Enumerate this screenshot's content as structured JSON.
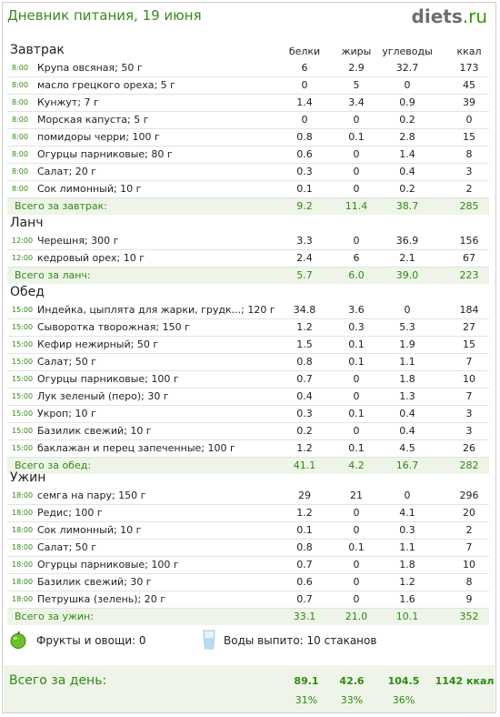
{
  "header": {
    "title": "Дневник питания, 19 июня",
    "logo_main": "diets",
    "logo_tld": ".ru"
  },
  "columns": [
    "белки",
    "жиры",
    "углеводы",
    "ккал"
  ],
  "meals": [
    {
      "name": "Завтрак",
      "items": [
        {
          "time": "8:00",
          "food": "Крупа овсяная; 50 г",
          "p": "6",
          "f": "2.9",
          "c": "32.7",
          "k": "173"
        },
        {
          "time": "8:00",
          "food": "масло грецкого ореха; 5 г",
          "p": "0",
          "f": "5",
          "c": "0",
          "k": "45"
        },
        {
          "time": "8:00",
          "food": "Кунжут; 7 г",
          "p": "1.4",
          "f": "3.4",
          "c": "0.9",
          "k": "39"
        },
        {
          "time": "8:00",
          "food": "Морская капуста; 5 г",
          "p": "0",
          "f": "0",
          "c": "0.2",
          "k": "0"
        },
        {
          "time": "8:00",
          "food": "помидоры черри; 100 г",
          "p": "0.8",
          "f": "0.1",
          "c": "2.8",
          "k": "15"
        },
        {
          "time": "8:00",
          "food": "Огурцы парниковые; 80 г",
          "p": "0.6",
          "f": "0",
          "c": "1.4",
          "k": "8"
        },
        {
          "time": "8:00",
          "food": "Салат; 20 г",
          "p": "0.3",
          "f": "0",
          "c": "0.4",
          "k": "3"
        },
        {
          "time": "8:00",
          "food": "Сок лимонный; 10 г",
          "p": "0.1",
          "f": "0",
          "c": "0.2",
          "k": "2"
        }
      ],
      "total": {
        "label": "Всего за завтрак:",
        "p": "9.2",
        "f": "11.4",
        "c": "38.7",
        "k": "285"
      }
    },
    {
      "name": "Ланч",
      "items": [
        {
          "time": "12:00",
          "food": "Черешня; 300 г",
          "p": "3.3",
          "f": "0",
          "c": "36.9",
          "k": "156"
        },
        {
          "time": "12:00",
          "food": "кедровый орех; 10 г",
          "p": "2.4",
          "f": "6",
          "c": "2.1",
          "k": "67"
        }
      ],
      "total": {
        "label": "Всего за ланч:",
        "p": "5.7",
        "f": "6.0",
        "c": "39.0",
        "k": "223"
      }
    },
    {
      "name": "Обед",
      "items": [
        {
          "time": "15:00",
          "food": "Индейка, цыплята для жарки, грудк...; 120 г",
          "p": "34.8",
          "f": "3.6",
          "c": "0",
          "k": "184"
        },
        {
          "time": "15:00",
          "food": "Сыворотка творожная; 150 г",
          "p": "1.2",
          "f": "0.3",
          "c": "5.3",
          "k": "27"
        },
        {
          "time": "15:00",
          "food": "Кефир нежирный; 50 г",
          "p": "1.5",
          "f": "0.1",
          "c": "1.9",
          "k": "15"
        },
        {
          "time": "15:00",
          "food": "Салат; 50 г",
          "p": "0.8",
          "f": "0.1",
          "c": "1.1",
          "k": "7"
        },
        {
          "time": "15:00",
          "food": "Огурцы парниковые; 100 г",
          "p": "0.7",
          "f": "0",
          "c": "1.8",
          "k": "10"
        },
        {
          "time": "15:00",
          "food": "Лук зеленый (перо); 30 г",
          "p": "0.4",
          "f": "0",
          "c": "1.3",
          "k": "7"
        },
        {
          "time": "15:00",
          "food": "Укроп; 10 г",
          "p": "0.3",
          "f": "0.1",
          "c": "0.4",
          "k": "3"
        },
        {
          "time": "15:00",
          "food": "Базилик свежий; 10 г",
          "p": "0.2",
          "f": "0",
          "c": "0.4",
          "k": "3"
        },
        {
          "time": "15:00",
          "food": "баклажан и перец запеченные; 100 г",
          "p": "1.2",
          "f": "0.1",
          "c": "4.5",
          "k": "26"
        }
      ],
      "total": {
        "label": "Всего за обед:",
        "p": "41.1",
        "f": "4.2",
        "c": "16.7",
        "k": "282"
      }
    },
    {
      "name": "Ужин",
      "items": [
        {
          "time": "18:00",
          "food": "семга на пару; 150 г",
          "p": "29",
          "f": "21",
          "c": "0",
          "k": "296"
        },
        {
          "time": "18:00",
          "food": "Редис; 100 г",
          "p": "1.2",
          "f": "0",
          "c": "4.1",
          "k": "20"
        },
        {
          "time": "18:00",
          "food": "Сок лимонный; 10 г",
          "p": "0.1",
          "f": "0",
          "c": "0.3",
          "k": "2"
        },
        {
          "time": "18:00",
          "food": "Салат; 50 г",
          "p": "0.8",
          "f": "0.1",
          "c": "1.1",
          "k": "7"
        },
        {
          "time": "18:00",
          "food": "Огурцы парниковые; 100 г",
          "p": "0.7",
          "f": "0",
          "c": "1.8",
          "k": "10"
        },
        {
          "time": "18:00",
          "food": "Базилик свежий; 30 г",
          "p": "0.6",
          "f": "0",
          "c": "1.2",
          "k": "8"
        },
        {
          "time": "18:00",
          "food": "Петрушка (зелень); 20 г",
          "p": "0.7",
          "f": "0",
          "c": "1.6",
          "k": "9"
        }
      ],
      "total": {
        "label": "Всего за ужин:",
        "p": "33.1",
        "f": "21.0",
        "c": "10.1",
        "k": "352"
      }
    }
  ],
  "extras": {
    "fruits": "Фрукты и овощи: 0",
    "water": "Воды выпито: 10 стаканов"
  },
  "day": {
    "label": "Всего за день:",
    "p": "89.1",
    "f": "42.6",
    "c": "104.5",
    "k": "1142 ккал",
    "p_pct": "31%",
    "f_pct": "33%",
    "c_pct": "36%"
  },
  "colors": {
    "accent": "#2e8a12",
    "total_bg": "#eef5e8",
    "title": "#3a8a1f"
  },
  "icons": {
    "fruits": "apple-icon",
    "water": "water-glass-icon"
  }
}
